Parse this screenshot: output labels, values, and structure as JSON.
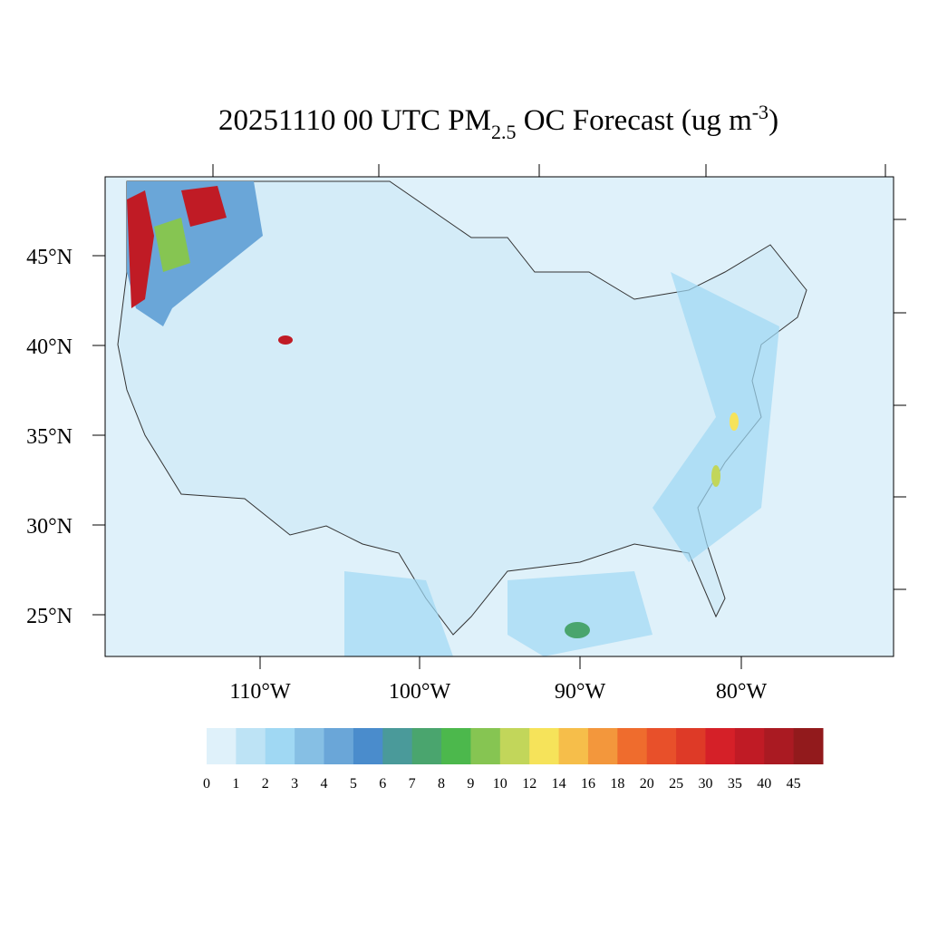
{
  "title": {
    "parts": [
      "20251110 00 UTC PM",
      "2.5",
      " OC Forecast (ug m",
      "-3",
      ")"
    ]
  },
  "lat_labels": [
    "45°N",
    "40°N",
    "35°N",
    "30°N",
    "25°N"
  ],
  "lon_labels": [
    "110°W",
    "100°W",
    "90°W",
    "80°W"
  ],
  "colorbar": {
    "labels": [
      "0",
      "1",
      "2",
      "3",
      "4",
      "5",
      "6",
      "7",
      "8",
      "9",
      "10",
      "12",
      "14",
      "16",
      "18",
      "20",
      "25",
      "30",
      "35",
      "40",
      "45"
    ],
    "colors": [
      "#dff1fa",
      "#bde3f5",
      "#a0d8f3",
      "#86bfe4",
      "#6aa6d8",
      "#4a8ccc",
      "#4a9a9a",
      "#4aa56e",
      "#4cb84c",
      "#86c552",
      "#c2d65a",
      "#f6e35a",
      "#f6be4a",
      "#f3973c",
      "#ef6c2d",
      "#e8502a",
      "#de3a27",
      "#d52028",
      "#c01b25",
      "#aa1a22",
      "#921a1c"
    ]
  }
}
